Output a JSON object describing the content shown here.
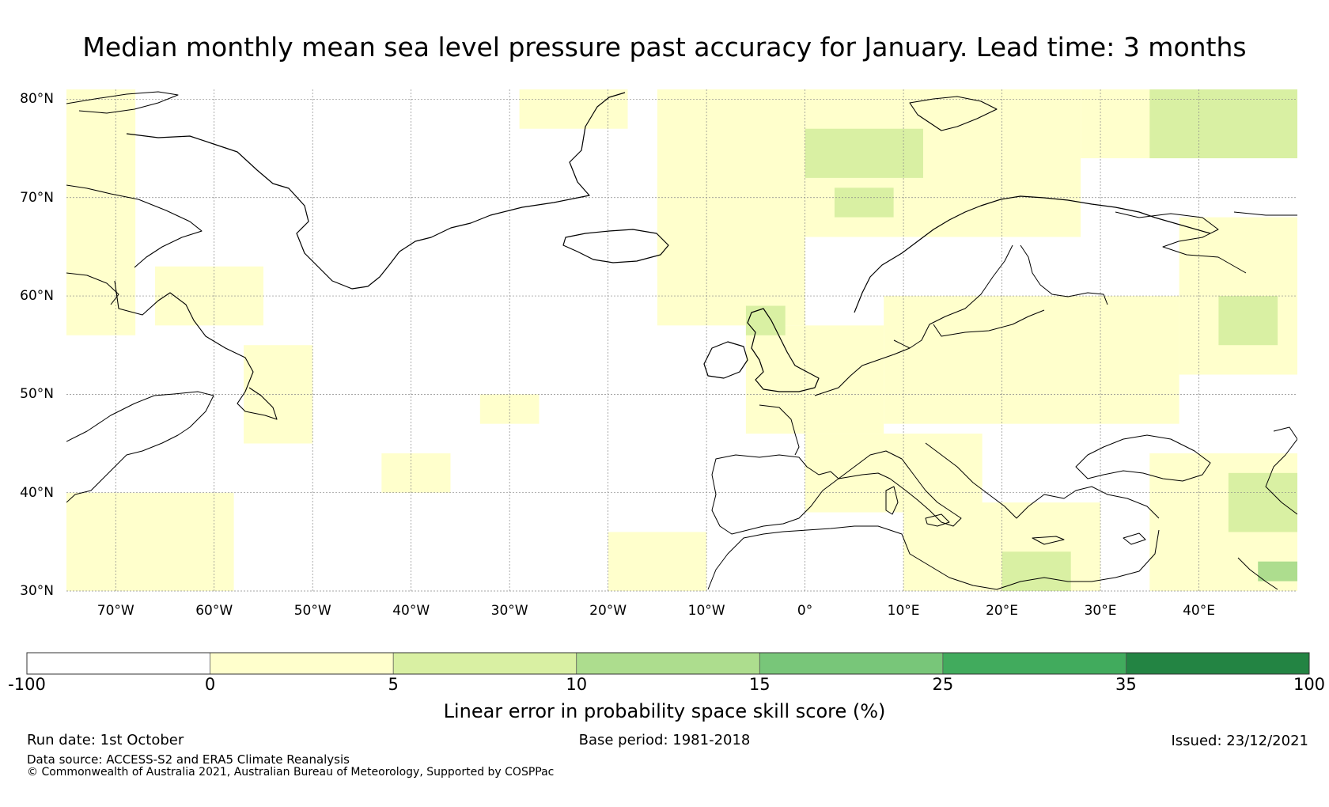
{
  "title": "Median monthly mean sea level pressure past accuracy for January. Lead time: 3 months",
  "map": {
    "lon_range": [
      -75,
      50
    ],
    "lat_range": [
      30,
      81
    ],
    "lat_labels": [
      "80°N",
      "70°N",
      "60°N",
      "50°N",
      "40°N",
      "30°N"
    ],
    "lat_values": [
      80,
      70,
      60,
      50,
      40,
      30
    ],
    "lon_labels": [
      "70°W",
      "60°W",
      "50°W",
      "40°W",
      "30°W",
      "20°W",
      "10°W",
      "0°",
      "10°E",
      "20°E",
      "30°E",
      "40°E"
    ],
    "lon_values": [
      -70,
      -60,
      -50,
      -40,
      -30,
      -20,
      -10,
      0,
      10,
      20,
      30,
      40
    ],
    "skill_regions": [
      {
        "class": 1,
        "lon": [
          -75,
          -68
        ],
        "lat": [
          56,
          81
        ]
      },
      {
        "class": 1,
        "lon": [
          -66,
          -55
        ],
        "lat": [
          57,
          63
        ]
      },
      {
        "class": 1,
        "lon": [
          -57,
          -50
        ],
        "lat": [
          45,
          55
        ]
      },
      {
        "class": 1,
        "lon": [
          -75,
          -58
        ],
        "lat": [
          30,
          40
        ]
      },
      {
        "class": 1,
        "lon": [
          -43,
          -36
        ],
        "lat": [
          40,
          44
        ]
      },
      {
        "class": 1,
        "lon": [
          -33,
          -27
        ],
        "lat": [
          47,
          50
        ]
      },
      {
        "class": 1,
        "lon": [
          -20,
          -10
        ],
        "lat": [
          30,
          36
        ]
      },
      {
        "class": 1,
        "lon": [
          -29,
          -18
        ],
        "lat": [
          77,
          81
        ]
      },
      {
        "class": 1,
        "lon": [
          -15,
          0
        ],
        "lat": [
          57,
          81
        ]
      },
      {
        "class": 1,
        "lon": [
          -15,
          -5
        ],
        "lat": [
          62,
          72
        ]
      },
      {
        "class": 1,
        "lon": [
          0,
          28
        ],
        "lat": [
          66,
          81
        ]
      },
      {
        "class": 1,
        "lon": [
          28,
          50
        ],
        "lat": [
          74,
          81
        ]
      },
      {
        "class": 1,
        "lon": [
          -6,
          8
        ],
        "lat": [
          46,
          57
        ]
      },
      {
        "class": 1,
        "lon": [
          8,
          38
        ],
        "lat": [
          47,
          60
        ]
      },
      {
        "class": 1,
        "lon": [
          38,
          50
        ],
        "lat": [
          52,
          68
        ]
      },
      {
        "class": 1,
        "lon": [
          0,
          18
        ],
        "lat": [
          38,
          46
        ]
      },
      {
        "class": 1,
        "lon": [
          10,
          30
        ],
        "lat": [
          30,
          39
        ]
      },
      {
        "class": 1,
        "lon": [
          35,
          50
        ],
        "lat": [
          30,
          44
        ]
      },
      {
        "class": 2,
        "lon": [
          0,
          12
        ],
        "lat": [
          72,
          77
        ]
      },
      {
        "class": 2,
        "lon": [
          35,
          50
        ],
        "lat": [
          74,
          81
        ]
      },
      {
        "class": 2,
        "lon": [
          43,
          50
        ],
        "lat": [
          36,
          42
        ]
      },
      {
        "class": 2,
        "lon": [
          20,
          27
        ],
        "lat": [
          30,
          34
        ]
      },
      {
        "class": 2,
        "lon": [
          -6,
          -2
        ],
        "lat": [
          56,
          59
        ]
      },
      {
        "class": 2,
        "lon": [
          42,
          48
        ],
        "lat": [
          55,
          60
        ]
      },
      {
        "class": 2,
        "lon": [
          3,
          9
        ],
        "lat": [
          68,
          71
        ]
      },
      {
        "class": 3,
        "lon": [
          46,
          50
        ],
        "lat": [
          31,
          33
        ]
      }
    ]
  },
  "colorbar": {
    "title": "Linear error in probability space skill score (%)",
    "boundaries": [
      "-100",
      "0",
      "5",
      "10",
      "15",
      "25",
      "35",
      "100"
    ],
    "colors": [
      "#ffffff",
      "#ffffcc",
      "#d9f0a3",
      "#addd8e",
      "#78c679",
      "#41ab5d",
      "#238443"
    ]
  },
  "footer": {
    "run_date": "Run date: 1st October",
    "base_period": "Base period: 1981-2018",
    "issued": "Issued: 23/12/2021",
    "data_source": "Data source: ACCESS-S2 and ERA5 Climate Reanalysis",
    "copyright": "© Commonwealth of Australia 2021, Australian Bureau of Meteorology, Supported by COSPPac"
  }
}
